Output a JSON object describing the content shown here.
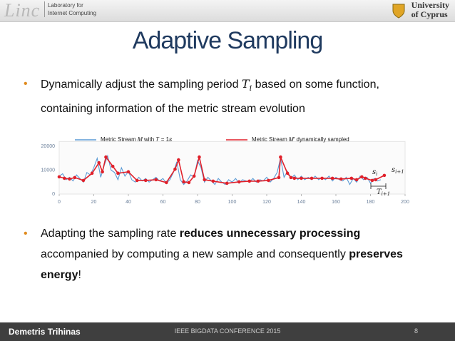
{
  "header": {
    "logo": "Linc",
    "lab_name": [
      "Laboratory for",
      "Internet Computing"
    ],
    "university": [
      "University",
      "of Cyprus"
    ]
  },
  "title": "Adaptive Sampling",
  "bullets": [
    {
      "parts": [
        {
          "text": "Dynamically adjust the sampling period "
        },
        {
          "text": "𝑇",
          "sub": "𝑖"
        },
        {
          "text": " based on some function, containing information of the metric stream evolution"
        }
      ]
    },
    {
      "parts": [
        {
          "text": "Adapting the sampling rate "
        },
        {
          "text": "reduces unnecessary processing",
          "bold": true
        },
        {
          "text": " accompanied by computing a new sample and consequently "
        },
        {
          "text": "preserves energy",
          "bold": true
        },
        {
          "text": "!"
        }
      ]
    }
  ],
  "chart": {
    "type": "line",
    "xlim": [
      0,
      200
    ],
    "xticks": [
      0,
      20,
      40,
      60,
      80,
      100,
      120,
      140,
      160,
      180,
      200
    ],
    "ylim": [
      0,
      22000
    ],
    "yticks": [
      0,
      10000,
      20000
    ],
    "grid": false,
    "series": [
      {
        "name": "Metric Stream 𝑀 with 𝑇 = 1𝑠",
        "color": "#5b9bd5",
        "x": [
          0,
          2,
          4,
          6,
          8,
          10,
          12,
          14,
          16,
          18,
          20,
          22,
          24,
          26,
          28,
          30,
          32,
          34,
          36,
          38,
          40,
          42,
          44,
          46,
          48,
          50,
          52,
          54,
          56,
          58,
          60,
          62,
          64,
          66,
          68,
          70,
          72,
          74,
          76,
          78,
          80,
          82,
          84,
          86,
          88,
          90,
          92,
          94,
          96,
          98,
          100,
          102,
          104,
          106,
          108,
          110,
          112,
          114,
          116,
          118,
          120,
          122,
          124,
          126,
          128,
          130,
          132,
          134,
          136,
          138,
          140,
          142,
          144,
          146,
          148,
          150,
          152,
          154,
          156,
          158,
          160,
          162,
          164,
          166,
          168,
          170,
          172,
          174,
          176,
          178,
          180,
          182,
          184,
          186
        ],
        "values": [
          7500,
          8500,
          6000,
          7000,
          5500,
          8000,
          6500,
          5000,
          9000,
          8000,
          11000,
          15000,
          7000,
          12000,
          16000,
          10000,
          9000,
          6000,
          11000,
          7500,
          9500,
          6000,
          5000,
          7000,
          5500,
          6500,
          5000,
          6000,
          7000,
          5500,
          6500,
          4500,
          6000,
          9000,
          13500,
          6000,
          4000,
          5500,
          8000,
          7000,
          14000,
          11000,
          5000,
          7000,
          5500,
          4000,
          6500,
          5000,
          4000,
          6000,
          5000,
          6500,
          4500,
          6000,
          5500,
          5000,
          6500,
          5000,
          6000,
          5500,
          7000,
          5000,
          6500,
          9000,
          15000,
          7000,
          9500,
          6500,
          8000,
          6000,
          7500,
          6000,
          7000,
          6000,
          7500,
          6000,
          7000,
          6000,
          7500,
          5500,
          7000,
          6000,
          5500,
          7000,
          4000,
          6500,
          5000,
          7500,
          6000,
          7000,
          4500,
          6500,
          5500,
          6000
        ]
      },
      {
        "name": "Metric Stream 𝑀′ dynamically sampled",
        "color": "#e0202a",
        "x": [
          0,
          3,
          6,
          9,
          14,
          19,
          23,
          25,
          27,
          31,
          34,
          40,
          45,
          50,
          56,
          62,
          67,
          69,
          72,
          75,
          78,
          81,
          84,
          89,
          97,
          104,
          110,
          115,
          121,
          127,
          128,
          132,
          134,
          136,
          140,
          146,
          152,
          158,
          163,
          169,
          172,
          175,
          177,
          181,
          183,
          188
        ],
        "values": [
          7200,
          6600,
          6300,
          6900,
          5700,
          8700,
          13100,
          9300,
          15500,
          11600,
          8700,
          9300,
          5700,
          5700,
          6000,
          4800,
          10400,
          14300,
          5100,
          4800,
          7500,
          15500,
          6000,
          5400,
          4500,
          5100,
          5400,
          5400,
          5700,
          6900,
          15500,
          8700,
          6900,
          6600,
          6600,
          6600,
          6600,
          6600,
          6300,
          6600,
          6000,
          7200,
          6600,
          5700,
          6000,
          7800
        ]
      }
    ],
    "annotations": [
      {
        "text": "𝑠",
        "sub": "𝑖"
      },
      {
        "text": "𝑠",
        "sub": "𝑖+1"
      },
      {
        "text": "𝑇",
        "sub": "𝑖+1"
      }
    ]
  },
  "footer": {
    "author": "Demetris Trihinas",
    "conference": "IEEE BIGDATA CONFERENCE 2015",
    "page": "8"
  }
}
